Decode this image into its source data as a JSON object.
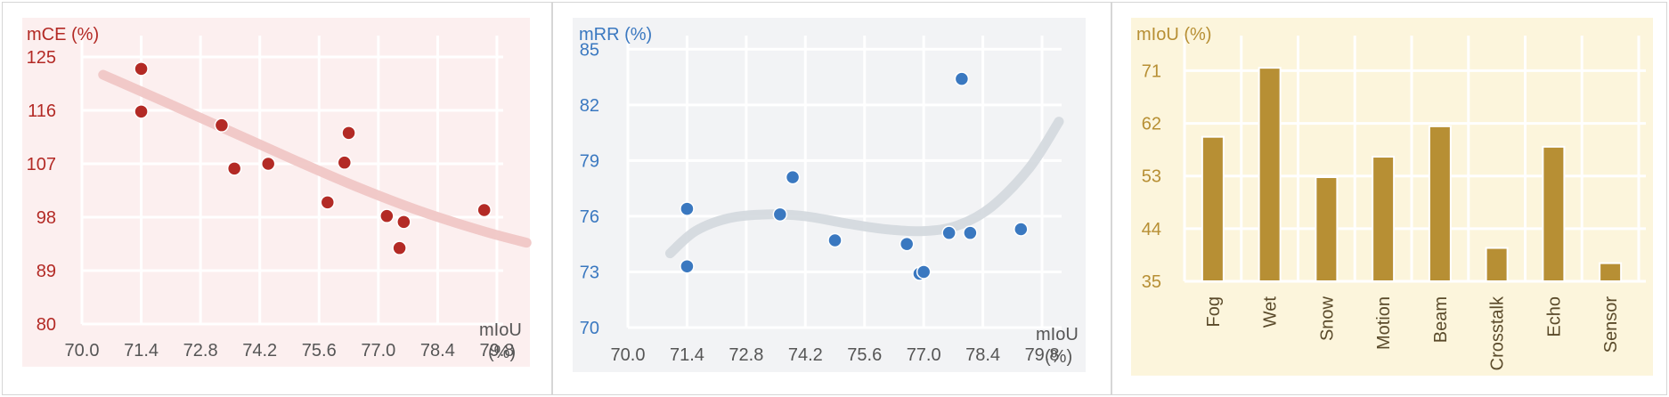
{
  "chart_data": [
    {
      "type": "scatter",
      "title": "",
      "ylabel": "mCE (%)",
      "xlabel_line1": "mIoU",
      "xlabel_line2": "(%)",
      "xticks": [
        "70.0",
        "71.4",
        "72.8",
        "74.2",
        "75.6",
        "77.0",
        "78.4",
        "79.8"
      ],
      "yticks": [
        "80",
        "89",
        "98",
        "107",
        "116",
        "125"
      ],
      "xlim": [
        70.0,
        80.6
      ],
      "ylim": [
        80,
        131
      ],
      "grid": true,
      "colors": {
        "background": "#fcefef",
        "point": "#b32a25",
        "trend": "#f0c4c3",
        "text": "#b32a25"
      },
      "points": [
        {
          "x": 71.4,
          "y": 123.0
        },
        {
          "x": 71.4,
          "y": 115.8
        },
        {
          "x": 73.3,
          "y": 113.5
        },
        {
          "x": 73.6,
          "y": 106.2
        },
        {
          "x": 74.4,
          "y": 107.0
        },
        {
          "x": 75.8,
          "y": 100.5
        },
        {
          "x": 76.2,
          "y": 107.2
        },
        {
          "x": 76.3,
          "y": 112.2
        },
        {
          "x": 77.2,
          "y": 98.2
        },
        {
          "x": 77.6,
          "y": 97.2
        },
        {
          "x": 77.5,
          "y": 92.8
        },
        {
          "x": 79.5,
          "y": 99.2
        }
      ],
      "trend": [
        {
          "x": 70.5,
          "y": 122.0
        },
        {
          "x": 72.0,
          "y": 117.3
        },
        {
          "x": 73.5,
          "y": 112.5
        },
        {
          "x": 75.0,
          "y": 107.7
        },
        {
          "x": 76.5,
          "y": 103.1
        },
        {
          "x": 78.0,
          "y": 99.0
        },
        {
          "x": 79.5,
          "y": 95.6
        },
        {
          "x": 80.5,
          "y": 93.7
        }
      ]
    },
    {
      "type": "scatter",
      "title": "",
      "ylabel": "mRR (%)",
      "xlabel_line1": "mIoU",
      "xlabel_line2": "(%)",
      "xticks": [
        "70.0",
        "71.4",
        "72.8",
        "74.2",
        "75.6",
        "77.0",
        "78.4",
        "79.8"
      ],
      "yticks": [
        "70",
        "73",
        "76",
        "79",
        "82",
        "85"
      ],
      "xlim": [
        70.0,
        80.6
      ],
      "ylim": [
        70,
        86.5
      ],
      "grid": true,
      "colors": {
        "background": "#f2f3f5",
        "point": "#3a78c0",
        "trend": "#d3d8de",
        "text": "#3a78c0"
      },
      "points": [
        {
          "x": 71.4,
          "y": 76.4
        },
        {
          "x": 71.4,
          "y": 73.3
        },
        {
          "x": 73.6,
          "y": 76.1
        },
        {
          "x": 73.9,
          "y": 78.1
        },
        {
          "x": 74.9,
          "y": 74.7
        },
        {
          "x": 76.6,
          "y": 74.5
        },
        {
          "x": 76.9,
          "y": 72.9
        },
        {
          "x": 77.0,
          "y": 73.0
        },
        {
          "x": 77.6,
          "y": 75.1
        },
        {
          "x": 77.9,
          "y": 83.4
        },
        {
          "x": 78.1,
          "y": 75.1
        },
        {
          "x": 79.3,
          "y": 75.3
        }
      ],
      "trend": [
        {
          "x": 71.0,
          "y": 74.0
        },
        {
          "x": 71.6,
          "y": 75.2
        },
        {
          "x": 72.4,
          "y": 75.9
        },
        {
          "x": 73.3,
          "y": 76.1
        },
        {
          "x": 74.2,
          "y": 76.0
        },
        {
          "x": 75.2,
          "y": 75.6
        },
        {
          "x": 76.1,
          "y": 75.3
        },
        {
          "x": 77.0,
          "y": 75.2
        },
        {
          "x": 77.8,
          "y": 75.5
        },
        {
          "x": 78.6,
          "y": 76.5
        },
        {
          "x": 79.5,
          "y": 78.6
        },
        {
          "x": 80.2,
          "y": 81.1
        }
      ]
    },
    {
      "type": "bar",
      "title": "",
      "ylabel": "mIoU (%)",
      "categories": [
        "Fog",
        "Wet",
        "Snow",
        "Motion",
        "Beam",
        "Crosstalk",
        "Echo",
        "Sensor"
      ],
      "values": [
        59.7,
        71.5,
        52.8,
        56.3,
        61.5,
        40.7,
        58.0,
        38.1
      ],
      "yticks": [
        "35",
        "44",
        "53",
        "62",
        "71"
      ],
      "ylim": [
        35,
        77
      ],
      "grid": true,
      "colors": {
        "background": "#fcf5dc",
        "bar": "#b78f34",
        "text": "#b78f34",
        "label": "#5a4a2a"
      }
    }
  ]
}
